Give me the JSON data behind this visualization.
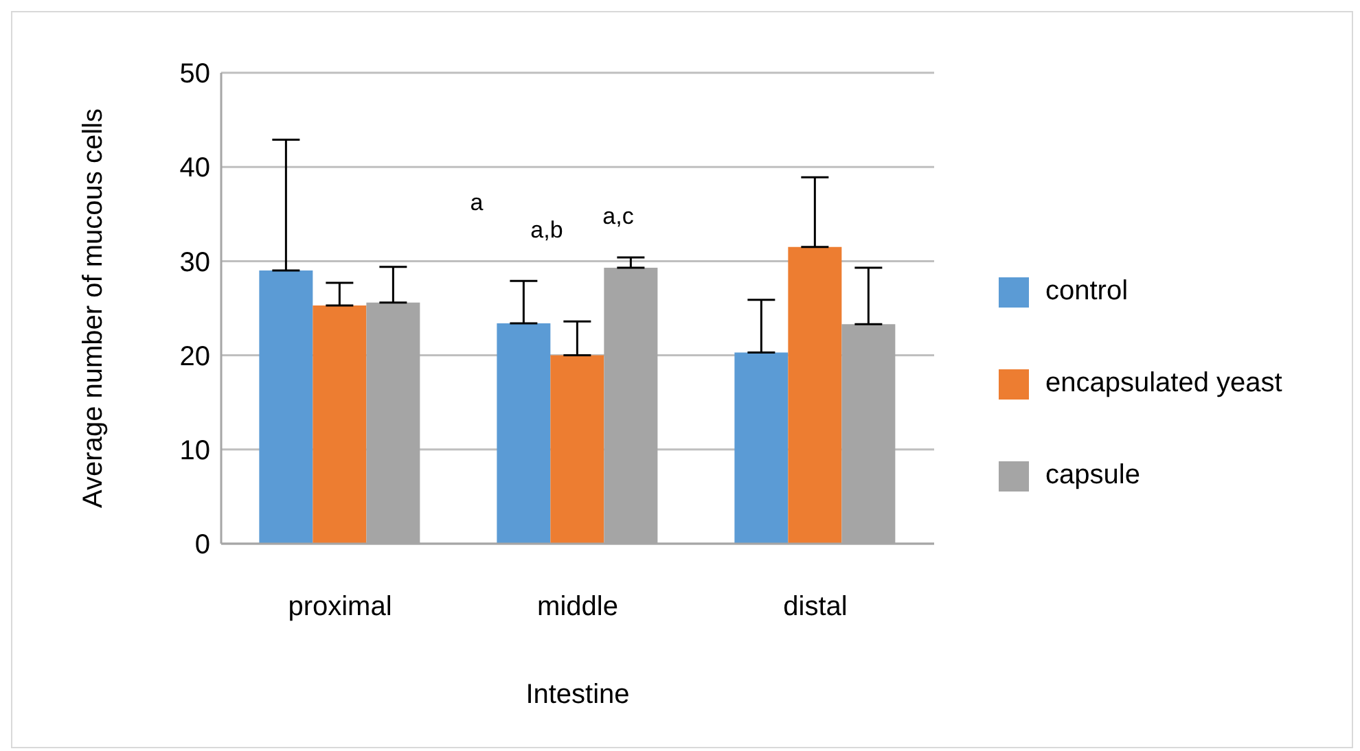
{
  "chart_data": {
    "type": "bar",
    "xlabel": "Intestine",
    "ylabel": "Average number of mucous cells",
    "categories": [
      "proximal",
      "middle",
      "distal"
    ],
    "series": [
      {
        "name": "control",
        "color": "#5b9bd5",
        "values": [
          29.0,
          23.4,
          20.3
        ],
        "errors": [
          [
            29.0,
            42.9
          ],
          [
            23.4,
            27.9
          ],
          [
            20.3,
            25.9
          ]
        ]
      },
      {
        "name": "encapsulated yeast",
        "color": "#ed7d31",
        "values": [
          25.3,
          20.0,
          31.5
        ],
        "errors": [
          [
            25.3,
            27.7
          ],
          [
            20.0,
            23.6
          ],
          [
            31.5,
            38.9
          ]
        ]
      },
      {
        "name": "capsule",
        "color": "#a5a5a5",
        "values": [
          25.6,
          29.3,
          23.3
        ],
        "errors": [
          [
            25.6,
            29.4
          ],
          [
            29.3,
            30.4
          ],
          [
            23.3,
            29.3
          ]
        ]
      }
    ],
    "ylim": [
      0,
      50
    ],
    "yticks": [
      0,
      10,
      20,
      30,
      40,
      50
    ],
    "grid": "y",
    "legend": "right",
    "annotations": [
      "a",
      "a,b",
      "a,c"
    ]
  }
}
